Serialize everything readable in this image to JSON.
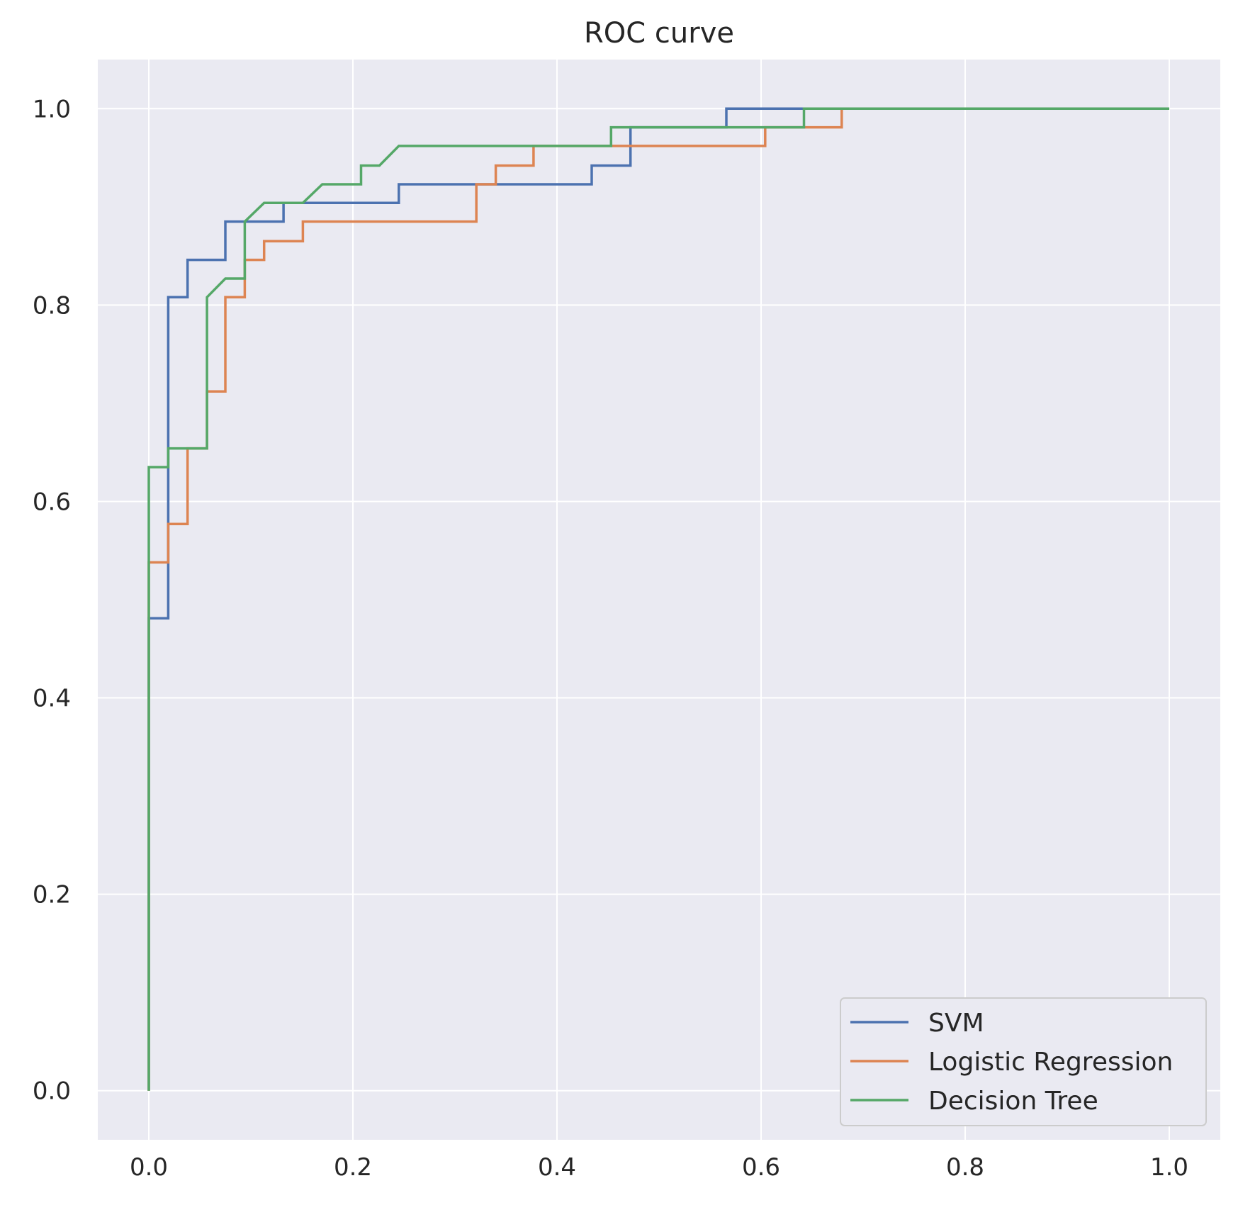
{
  "chart_data": {
    "type": "line",
    "title": "ROC curve",
    "xlabel": "",
    "ylabel": "",
    "xlim": [
      -0.05,
      1.05
    ],
    "ylim": [
      -0.05,
      1.05
    ],
    "grid": true,
    "legend_position": "lower-right",
    "x_ticks": [
      "0.0",
      "0.2",
      "0.4",
      "0.6",
      "0.8",
      "1.0"
    ],
    "y_ticks": [
      "0.0",
      "0.2",
      "0.4",
      "0.6",
      "0.8",
      "1.0"
    ],
    "series": [
      {
        "name": "SVM",
        "color": "#4c72b0",
        "points": [
          [
            0,
            0
          ],
          [
            0,
            0.481
          ],
          [
            0.019,
            0.481
          ],
          [
            0.019,
            0.808
          ],
          [
            0.038,
            0.808
          ],
          [
            0.038,
            0.846
          ],
          [
            0.075,
            0.846
          ],
          [
            0.075,
            0.885
          ],
          [
            0.132,
            0.885
          ],
          [
            0.132,
            0.904
          ],
          [
            0.245,
            0.904
          ],
          [
            0.245,
            0.923
          ],
          [
            0.434,
            0.923
          ],
          [
            0.434,
            0.942
          ],
          [
            0.472,
            0.942
          ],
          [
            0.472,
            0.981
          ],
          [
            0.566,
            0.981
          ],
          [
            0.566,
            1.0
          ],
          [
            1.0,
            1.0
          ]
        ]
      },
      {
        "name": "Logistic Regression",
        "color": "#dd8452",
        "points": [
          [
            0,
            0
          ],
          [
            0,
            0.538
          ],
          [
            0.019,
            0.538
          ],
          [
            0.019,
            0.577
          ],
          [
            0.038,
            0.577
          ],
          [
            0.038,
            0.654
          ],
          [
            0.057,
            0.654
          ],
          [
            0.057,
            0.712
          ],
          [
            0.075,
            0.712
          ],
          [
            0.075,
            0.808
          ],
          [
            0.094,
            0.808
          ],
          [
            0.094,
            0.846
          ],
          [
            0.113,
            0.846
          ],
          [
            0.113,
            0.865
          ],
          [
            0.151,
            0.865
          ],
          [
            0.151,
            0.885
          ],
          [
            0.321,
            0.885
          ],
          [
            0.321,
            0.923
          ],
          [
            0.34,
            0.923
          ],
          [
            0.34,
            0.942
          ],
          [
            0.377,
            0.942
          ],
          [
            0.377,
            0.962
          ],
          [
            0.604,
            0.962
          ],
          [
            0.604,
            0.981
          ],
          [
            0.679,
            0.981
          ],
          [
            0.679,
            1.0
          ],
          [
            1.0,
            1.0
          ]
        ]
      },
      {
        "name": "Decision Tree",
        "color": "#55a868",
        "points": [
          [
            0,
            0
          ],
          [
            0,
            0.635
          ],
          [
            0.019,
            0.635
          ],
          [
            0.019,
            0.654
          ],
          [
            0.057,
            0.654
          ],
          [
            0.057,
            0.808
          ],
          [
            0.075,
            0.827
          ],
          [
            0.094,
            0.827
          ],
          [
            0.094,
            0.885
          ],
          [
            0.113,
            0.904
          ],
          [
            0.151,
            0.904
          ],
          [
            0.17,
            0.923
          ],
          [
            0.208,
            0.923
          ],
          [
            0.208,
            0.942
          ],
          [
            0.226,
            0.942
          ],
          [
            0.245,
            0.962
          ],
          [
            0.453,
            0.962
          ],
          [
            0.453,
            0.981
          ],
          [
            0.642,
            0.981
          ],
          [
            0.642,
            1.0
          ],
          [
            1.0,
            1.0
          ]
        ]
      }
    ]
  }
}
